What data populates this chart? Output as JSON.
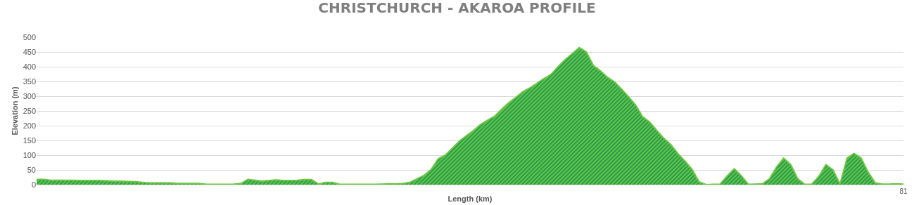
{
  "chart_data": {
    "type": "area",
    "title": "CHRISTCHURCH - AKAROA PROFILE",
    "xlabel": "Length (km)",
    "ylabel": "Elevation (m)",
    "categories": [
      null,
      null,
      null,
      null,
      null,
      null,
      null,
      null,
      null,
      null,
      null,
      null,
      null,
      null,
      null,
      null,
      null,
      null,
      null,
      null,
      null,
      null,
      null,
      null,
      null,
      null,
      null,
      null,
      null,
      null,
      null,
      null,
      null,
      null,
      null,
      null,
      null,
      null,
      null,
      null,
      null,
      null,
      null,
      null,
      null,
      null,
      null,
      null,
      null,
      null,
      null,
      null,
      null,
      null,
      null,
      null,
      null,
      null,
      null,
      null,
      null,
      null,
      null,
      null,
      null,
      null,
      null,
      null,
      null,
      null,
      null,
      null,
      null,
      null,
      null,
      null,
      null,
      null,
      null,
      null,
      null,
      null,
      null,
      null,
      null,
      null,
      null,
      null,
      null,
      null,
      null,
      null,
      null,
      null,
      null,
      null,
      null,
      null,
      null,
      null,
      null,
      null,
      null,
      null,
      null,
      null,
      null,
      null,
      null,
      null,
      null,
      null,
      null,
      null,
      null,
      null,
      null,
      null,
      null,
      null,
      null,
      null,
      null,
      "81"
    ],
    "series": [
      {
        "color": "#6cc644",
        "values": [
          18,
          18,
          15,
          15,
          15,
          15,
          14,
          14,
          14,
          14,
          13,
          12,
          12,
          11,
          10,
          8,
          6,
          6,
          6,
          6,
          4,
          4,
          4,
          4,
          2,
          1,
          1,
          1,
          2,
          4,
          18,
          15,
          12,
          14,
          16,
          14,
          14,
          15,
          17,
          17,
          2,
          8,
          8,
          1,
          1,
          1,
          1,
          1,
          1,
          2,
          3,
          3,
          4,
          8,
          20,
          32,
          52,
          88,
          100,
          124,
          148,
          166,
          184,
          204,
          219,
          232,
          256,
          278,
          296,
          315,
          328,
          344,
          360,
          374,
          400,
          424,
          444,
          465,
          450,
          404,
          386,
          364,
          349,
          324,
          298,
          270,
          230,
          212,
          184,
          157,
          136,
          105,
          80,
          52,
          10,
          0,
          1,
          2,
          30,
          54,
          30,
          1,
          2,
          3,
          20,
          60,
          90,
          68,
          20,
          1,
          2,
          28,
          68,
          50,
          2,
          90,
          106,
          90,
          42,
          6,
          2,
          2,
          3,
          2
        ]
      }
    ],
    "ylim": [
      0,
      500
    ],
    "yticks": [
      0,
      50,
      100,
      150,
      200,
      250,
      300,
      350,
      400,
      450,
      500
    ],
    "grid": "y",
    "legend": false
  }
}
